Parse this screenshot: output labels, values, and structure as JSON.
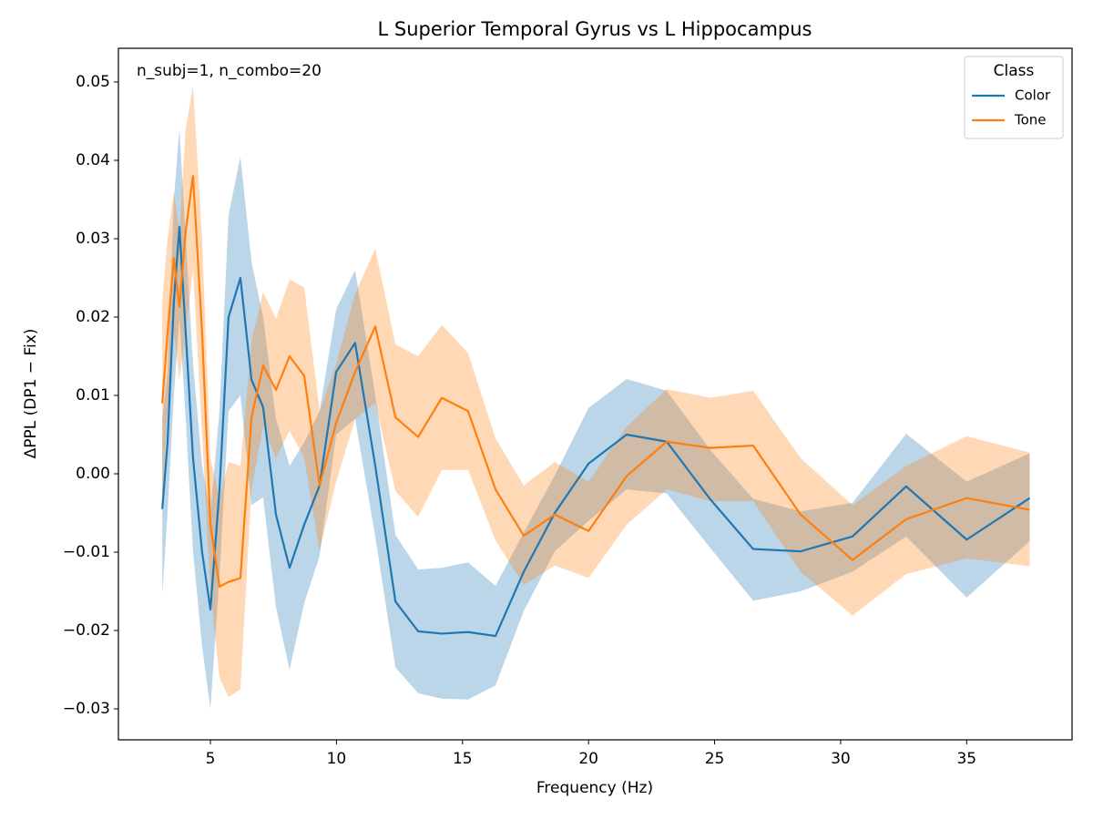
{
  "chart_data": {
    "type": "line",
    "title": "L Superior Temporal Gyrus vs L Hippocampus",
    "annotation": "n_subj=1, n_combo=20",
    "xlabel": "Frequency (Hz)",
    "ylabel": "ΔPPL (DP1 − Fix)",
    "legend_title": "Class",
    "legend_position": "upper right",
    "x": [
      3.09,
      3.3,
      3.55,
      3.77,
      4.02,
      4.31,
      4.67,
      5.0,
      5.36,
      5.72,
      6.19,
      6.63,
      7.09,
      7.6,
      8.14,
      8.72,
      9.33,
      9.99,
      10.74,
      11.54,
      12.34,
      13.24,
      14.18,
      15.22,
      16.31,
      17.43,
      18.66,
      20.0,
      21.51,
      23.1,
      24.84,
      26.53,
      28.41,
      30.47,
      32.6,
      35.0,
      37.5
    ],
    "series": [
      {
        "name": "Color",
        "color": "#1f77b4",
        "values": [
          -0.0045,
          0.004,
          0.022,
          0.0315,
          0.018,
          0.002,
          -0.01,
          -0.0173,
          -0.002,
          0.02,
          0.025,
          0.012,
          0.0085,
          -0.0052,
          -0.012,
          -0.0065,
          -0.0015,
          0.013,
          0.0167,
          0.001,
          -0.0163,
          -0.0201,
          -0.0204,
          -0.0202,
          -0.0207,
          -0.0125,
          -0.005,
          0.0013,
          0.005,
          0.0041,
          -0.0033,
          -0.0096,
          -0.0099,
          -0.008,
          -0.0016,
          -0.0084,
          -0.0031
        ],
        "lower": [
          -0.0155,
          -0.005,
          0.01,
          0.02,
          0.007,
          -0.01,
          -0.022,
          -0.03,
          -0.013,
          0.008,
          0.01,
          -0.004,
          -0.003,
          -0.017,
          -0.025,
          -0.0165,
          -0.0105,
          0.005,
          0.007,
          -0.008,
          -0.0247,
          -0.028,
          -0.0287,
          -0.0288,
          -0.027,
          -0.0175,
          -0.0099,
          -0.006,
          -0.002,
          -0.0025,
          -0.0095,
          -0.0162,
          -0.015,
          -0.0125,
          -0.008,
          -0.0158,
          -0.0086
        ],
        "upper": [
          0.007,
          0.013,
          0.035,
          0.044,
          0.03,
          0.014,
          0.001,
          -0.005,
          0.008,
          0.033,
          0.0405,
          0.027,
          0.02,
          0.007,
          0.001,
          0.004,
          0.008,
          0.021,
          0.026,
          0.01,
          -0.0078,
          -0.0122,
          -0.012,
          -0.0113,
          -0.0143,
          -0.0075,
          -0.0002,
          0.0084,
          0.0121,
          0.0106,
          0.003,
          -0.0032,
          -0.0048,
          -0.0037,
          0.0051,
          -0.001,
          0.0026
        ]
      },
      {
        "name": "Tone",
        "color": "#ff7f0e",
        "values": [
          0.009,
          0.018,
          0.0275,
          0.0213,
          0.031,
          0.038,
          0.018,
          -0.0065,
          -0.0144,
          -0.0138,
          -0.0133,
          0.0072,
          0.0138,
          0.0107,
          0.015,
          0.0125,
          -0.0015,
          0.0065,
          0.013,
          0.0188,
          0.0072,
          0.0047,
          0.0097,
          0.008,
          -0.002,
          -0.0079,
          -0.0052,
          -0.0073,
          -0.0003,
          0.0041,
          0.0033,
          0.0036,
          -0.0052,
          -0.011,
          -0.0058,
          -0.0031,
          -0.0046
        ],
        "lower": [
          -0.003,
          0.008,
          0.018,
          0.012,
          0.018,
          0.026,
          0.005,
          -0.015,
          -0.026,
          -0.0285,
          -0.0275,
          -0.002,
          0.006,
          0.002,
          0.0055,
          0.002,
          -0.0098,
          -0.001,
          0.007,
          0.009,
          -0.0022,
          -0.0055,
          0.0005,
          0.0005,
          -0.0085,
          -0.0142,
          -0.0117,
          -0.0133,
          -0.0065,
          -0.002,
          -0.0035,
          -0.0035,
          -0.0125,
          -0.0181,
          -0.0128,
          -0.0108,
          -0.0118
        ],
        "upper": [
          0.022,
          0.03,
          0.036,
          0.031,
          0.044,
          0.0495,
          0.03,
          0.002,
          -0.003,
          0.0015,
          0.001,
          0.017,
          0.0232,
          0.0198,
          0.0248,
          0.0238,
          0.008,
          0.014,
          0.023,
          0.0287,
          0.0165,
          0.015,
          0.019,
          0.0154,
          0.0045,
          -0.0015,
          0.0015,
          -0.001,
          0.006,
          0.0108,
          0.0097,
          0.0106,
          0.002,
          -0.004,
          0.001,
          0.0048,
          0.0027
        ]
      }
    ],
    "xlim": [
      1.35,
      39.18
    ],
    "ylim": [
      -0.03395,
      0.0543
    ],
    "xticks": [
      5,
      10,
      15,
      20,
      25,
      30,
      35
    ],
    "yticks": [
      {
        "value": -0.03,
        "label": "−0.03"
      },
      {
        "value": -0.02,
        "label": "−0.02"
      },
      {
        "value": -0.01,
        "label": "−0.01"
      },
      {
        "value": 0,
        "label": "0.00"
      },
      0.01,
      0.02,
      0.03,
      0.04,
      0.05
    ]
  }
}
